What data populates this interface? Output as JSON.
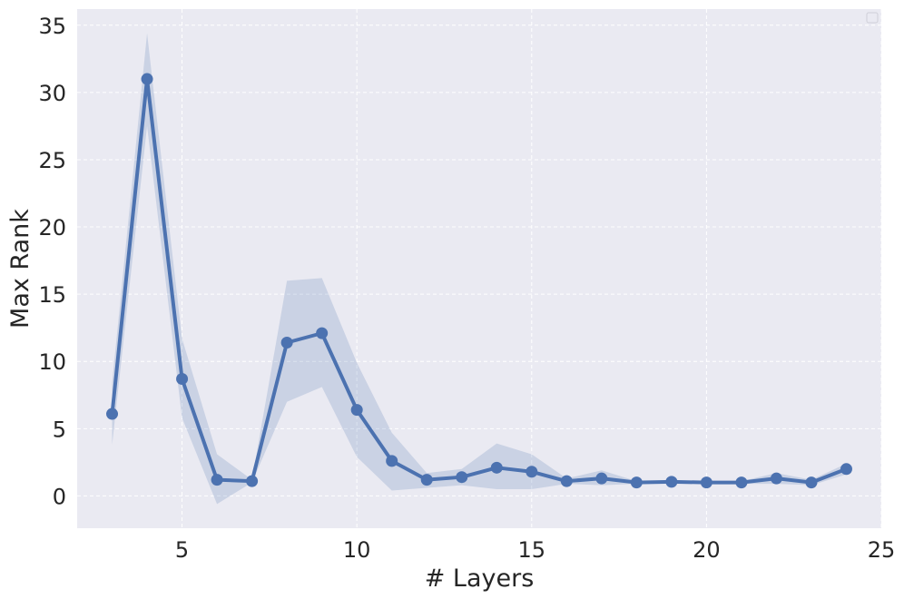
{
  "chart_data": {
    "type": "line",
    "xlabel": "# Layers",
    "ylabel": "Max Rank",
    "xlim": [
      2,
      25
    ],
    "ylim": [
      -2.4,
      36.2
    ],
    "xticks": [
      5,
      10,
      15,
      20,
      25
    ],
    "yticks": [
      0,
      5,
      10,
      15,
      20,
      25,
      30,
      35
    ],
    "grid": true,
    "legend": "top-right, empty",
    "colors": {
      "line": "#4c72b0",
      "band": "#4c72b0",
      "background": "#eaeaf2",
      "grid": "#ffffff"
    },
    "series": [
      {
        "x": [
          3,
          4,
          5,
          6,
          7,
          8,
          9,
          10,
          11,
          12,
          13,
          14,
          15,
          16,
          17,
          18,
          19,
          20,
          21,
          22,
          23,
          24
        ],
        "y": [
          6.1,
          31.0,
          8.7,
          1.2,
          1.1,
          11.4,
          12.1,
          6.4,
          2.6,
          1.2,
          1.4,
          2.1,
          1.8,
          1.1,
          1.3,
          1.0,
          1.05,
          1.0,
          1.0,
          1.3,
          1.0,
          2.0
        ],
        "lower": [
          3.8,
          27.5,
          5.8,
          -0.6,
          1.0,
          7.0,
          8.1,
          2.9,
          0.4,
          0.6,
          0.8,
          0.5,
          0.5,
          0.9,
          0.8,
          0.9,
          0.95,
          0.9,
          0.9,
          0.9,
          0.8,
          1.6
        ],
        "upper": [
          8.4,
          34.4,
          11.7,
          3.1,
          1.2,
          16.0,
          16.2,
          9.9,
          4.7,
          1.7,
          2.0,
          3.9,
          3.1,
          1.3,
          1.9,
          1.1,
          1.15,
          1.1,
          1.1,
          1.7,
          1.2,
          2.4
        ]
      }
    ]
  }
}
